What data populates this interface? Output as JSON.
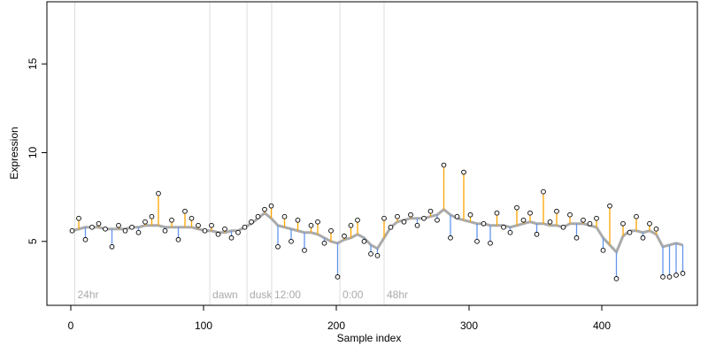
{
  "chart_data": {
    "type": "scatter",
    "xlabel": "Sample index",
    "ylabel": "Expression",
    "xlim": [
      -18,
      472
    ],
    "ylim": [
      1.4,
      18.5
    ],
    "xticks": [
      0,
      100,
      200,
      300,
      400
    ],
    "yticks": [
      5,
      10,
      15
    ],
    "point_color": "#000000",
    "above_color": "#FFA500",
    "below_color": "#6495ED",
    "trend_color": "#AAAAAA",
    "marker_color": "#DDDDDD",
    "markers": [
      {
        "x": 3,
        "label": "24hr"
      },
      {
        "x": 104.7,
        "label": "dawn"
      },
      {
        "x": 132.7,
        "label": "dusk"
      },
      {
        "x": 151.3,
        "label": "12:00"
      },
      {
        "x": 202.7,
        "label": "0:00"
      },
      {
        "x": 236,
        "label": "48hr"
      }
    ],
    "x": [
      1,
      6,
      11,
      16,
      21,
      26,
      31,
      36,
      41,
      46,
      51,
      56,
      61,
      66,
      71,
      76,
      81,
      86,
      91,
      96,
      101,
      106,
      111,
      116,
      121,
      126,
      131,
      136,
      141,
      146,
      151,
      156,
      161,
      166,
      171,
      176,
      181,
      186,
      191,
      196,
      201,
      206,
      211,
      216,
      221,
      226,
      231,
      236,
      241,
      246,
      251,
      256,
      261,
      266,
      271,
      276,
      281,
      286,
      291,
      296,
      301,
      306,
      311,
      316,
      321,
      326,
      331,
      336,
      341,
      346,
      351,
      356,
      361,
      366,
      371,
      376,
      381,
      386,
      391,
      396,
      401,
      406,
      411,
      416,
      421,
      426,
      431,
      436,
      441,
      446,
      451,
      456,
      461
    ],
    "values": [
      5.6,
      6.3,
      5.1,
      5.8,
      6.0,
      5.7,
      4.7,
      5.9,
      5.6,
      5.8,
      5.5,
      6.1,
      6.4,
      7.7,
      5.6,
      6.2,
      5.1,
      6.7,
      6.3,
      5.9,
      5.6,
      5.9,
      5.4,
      5.7,
      5.2,
      5.5,
      5.8,
      6.1,
      6.4,
      6.8,
      7.0,
      4.7,
      6.4,
      5.0,
      6.2,
      4.5,
      5.9,
      6.1,
      4.9,
      5.6,
      3.0,
      5.3,
      5.9,
      6.2,
      5.0,
      4.3,
      4.2,
      6.3,
      5.8,
      6.4,
      6.1,
      6.5,
      5.9,
      6.3,
      6.7,
      6.2,
      9.3,
      5.2,
      6.4,
      8.9,
      6.5,
      5.0,
      6.0,
      4.9,
      6.6,
      5.8,
      5.5,
      6.9,
      6.2,
      6.6,
      5.4,
      7.8,
      6.1,
      6.7,
      5.8,
      6.5,
      5.2,
      6.2,
      6.0,
      6.3,
      4.5,
      7.0,
      2.9,
      6.0,
      5.5,
      6.4,
      5.2,
      6.0,
      5.7,
      3.0,
      3.0,
      3.1,
      3.2
    ],
    "trend": [
      5.6,
      5.7,
      5.8,
      5.8,
      5.8,
      5.7,
      5.7,
      5.7,
      5.7,
      5.8,
      5.8,
      5.9,
      5.9,
      5.9,
      5.8,
      5.8,
      5.8,
      5.8,
      5.8,
      5.7,
      5.6,
      5.6,
      5.5,
      5.5,
      5.6,
      5.6,
      5.8,
      6.0,
      6.3,
      6.6,
      6.3,
      5.9,
      5.8,
      5.7,
      5.6,
      5.5,
      5.5,
      5.4,
      5.2,
      5.0,
      4.9,
      5.1,
      5.2,
      5.4,
      5.2,
      4.8,
      4.6,
      5.2,
      5.8,
      6.1,
      6.2,
      6.3,
      6.3,
      6.3,
      6.4,
      6.5,
      6.8,
      6.5,
      6.3,
      6.2,
      6.1,
      6.0,
      6.0,
      5.9,
      5.9,
      5.9,
      5.8,
      5.9,
      6.0,
      6.1,
      6.0,
      6.0,
      5.9,
      5.9,
      5.8,
      6.0,
      6.0,
      6.0,
      5.9,
      5.8,
      5.2,
      4.8,
      4.4,
      5.3,
      5.6,
      5.6,
      5.5,
      5.6,
      5.4,
      4.7,
      4.8,
      4.9,
      4.8
    ]
  }
}
